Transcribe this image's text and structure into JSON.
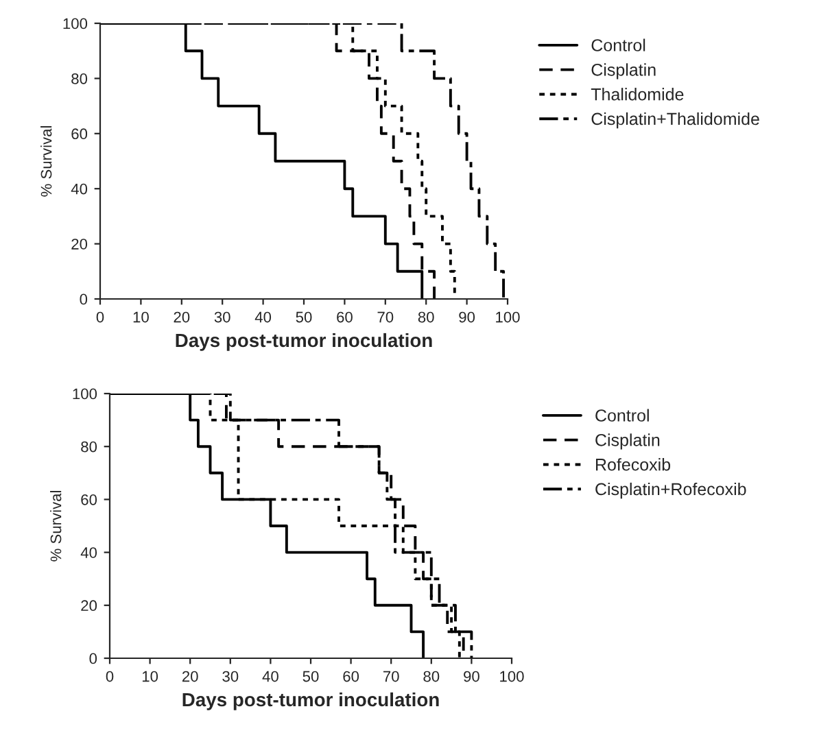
{
  "chart_data": [
    {
      "type": "step",
      "xlabel": "Days post-tumor inoculation",
      "ylabel": "% Survival",
      "xlim": [
        0,
        100
      ],
      "ylim": [
        0,
        100
      ],
      "xticks": [
        0,
        10,
        20,
        30,
        40,
        50,
        60,
        70,
        80,
        90,
        100
      ],
      "yticks": [
        0,
        20,
        40,
        60,
        80,
        100
      ],
      "grid": false,
      "legend": "top right",
      "marker": "none",
      "series": [
        {
          "name": "Control",
          "color": "#000000",
          "line_style": "solid",
          "x": [
            0,
            21,
            25,
            29,
            39,
            43,
            60,
            62,
            70,
            73,
            79
          ],
          "values": [
            100,
            90,
            80,
            70,
            60,
            50,
            40,
            30,
            20,
            10,
            0
          ]
        },
        {
          "name": "Cisplatin",
          "color": "#000000",
          "line_style": "dashed",
          "x": [
            0,
            58,
            66,
            68,
            69,
            72,
            74,
            76,
            77,
            79,
            82
          ],
          "values": [
            100,
            90,
            80,
            70,
            60,
            50,
            40,
            30,
            20,
            10,
            0
          ]
        },
        {
          "name": "Thalidomide",
          "color": "#000000",
          "line_style": "dotted",
          "x": [
            0,
            62,
            68,
            70,
            74,
            78,
            79,
            80,
            84,
            86,
            87
          ],
          "values": [
            100,
            90,
            80,
            70,
            60,
            50,
            40,
            30,
            20,
            10,
            0
          ]
        },
        {
          "name": "Cisplatin+Thalidomide",
          "color": "#000000",
          "line_style": "dashed",
          "x": [
            0,
            74,
            82,
            86,
            88,
            90,
            91,
            93,
            95,
            97,
            99
          ],
          "values": [
            100,
            90,
            80,
            70,
            60,
            50,
            40,
            30,
            20,
            10,
            0
          ]
        }
      ]
    },
    {
      "type": "step",
      "xlabel": "Days post-tumor inoculation",
      "ylabel": "% Survival",
      "xlim": [
        0,
        100
      ],
      "ylim": [
        0,
        100
      ],
      "xticks": [
        0,
        10,
        20,
        30,
        40,
        50,
        60,
        70,
        80,
        90,
        100
      ],
      "yticks": [
        0,
        20,
        40,
        60,
        80,
        100
      ],
      "grid": false,
      "legend": "top right",
      "marker": "none",
      "series": [
        {
          "name": "Control",
          "color": "#000000",
          "line_style": "solid",
          "x": [
            0,
            20,
            22,
            25,
            28,
            40,
            44,
            64,
            66,
            75,
            78
          ],
          "values": [
            100,
            90,
            80,
            70,
            60,
            50,
            40,
            30,
            20,
            10,
            0
          ]
        },
        {
          "name": "Cisplatin",
          "color": "#000000",
          "line_style": "dashed",
          "x": [
            0,
            29,
            42,
            67,
            70,
            73,
            76,
            78,
            80,
            84,
            88
          ],
          "values": [
            100,
            90,
            80,
            70,
            60,
            50,
            40,
            30,
            20,
            10,
            0
          ]
        },
        {
          "name": "Rofecoxib",
          "color": "#000000",
          "line_style": "dotted",
          "x": [
            0,
            25,
            32,
            57,
            73,
            76,
            80,
            85,
            87
          ],
          "values": [
            100,
            90,
            60,
            50,
            40,
            30,
            20,
            10,
            0
          ]
        },
        {
          "name": "Cisplatin+Rofecoxib",
          "color": "#000000",
          "line_style": "dashed",
          "x": [
            0,
            30,
            57,
            67,
            69,
            71,
            80,
            82,
            86,
            90
          ],
          "values": [
            100,
            90,
            80,
            70,
            60,
            40,
            30,
            20,
            10,
            0
          ]
        }
      ]
    }
  ]
}
